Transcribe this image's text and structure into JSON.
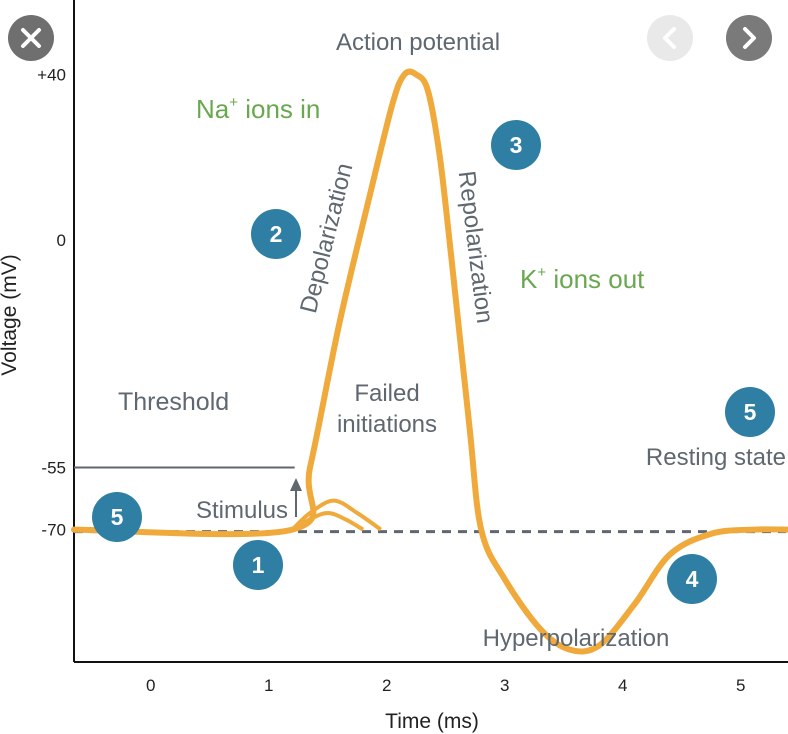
{
  "chart_data": {
    "type": "line",
    "xlabel": "Time (ms)",
    "ylabel": "Voltage (mV)",
    "x_ticks": [
      "0",
      "1",
      "2",
      "3",
      "4",
      "5"
    ],
    "y_ticks": [
      {
        "value": 40,
        "label": "+40"
      },
      {
        "value": 0,
        "label": "0"
      },
      {
        "value": -55,
        "label": "-55"
      },
      {
        "value": -70,
        "label": "-70"
      }
    ],
    "xlim": [
      -0.65,
      5.4
    ],
    "ylim": [
      -102,
      58
    ],
    "series": [
      {
        "points": [
          [
            -0.65,
            -70
          ],
          [
            1.2,
            -70
          ],
          [
            1.35,
            -55
          ],
          [
            1.6,
            -20
          ],
          [
            1.85,
            10
          ],
          [
            2.05,
            33
          ],
          [
            2.15,
            40
          ],
          [
            2.25,
            40
          ],
          [
            2.35,
            36
          ],
          [
            2.45,
            20
          ],
          [
            2.55,
            -5
          ],
          [
            2.7,
            -45
          ],
          [
            2.8,
            -70
          ],
          [
            3.0,
            -82
          ],
          [
            3.3,
            -94
          ],
          [
            3.55,
            -99
          ],
          [
            3.8,
            -98
          ],
          [
            4.1,
            -88
          ],
          [
            4.4,
            -76
          ],
          [
            4.75,
            -71
          ],
          [
            5.1,
            -70
          ],
          [
            5.4,
            -70
          ]
        ]
      }
    ],
    "failed_initiations": [
      [
        [
          1.2,
          -70
        ],
        [
          1.35,
          -66
        ],
        [
          1.55,
          -63
        ],
        [
          1.75,
          -66
        ],
        [
          1.95,
          -70
        ]
      ],
      [
        [
          1.2,
          -70
        ],
        [
          1.35,
          -67.5
        ],
        [
          1.5,
          -66
        ],
        [
          1.65,
          -67.5
        ],
        [
          1.8,
          -70
        ]
      ]
    ],
    "threshold": {
      "value": -55,
      "label": "Threshold"
    },
    "resting": {
      "value": -70,
      "label": "Resting state"
    },
    "annotations": {
      "peak": "Action potential",
      "na": {
        "base": "Na",
        "sup": "+",
        "rest": " ions in"
      },
      "k": {
        "base": "K",
        "sup": "+",
        "rest": " ions out"
      },
      "depol": "Depolarization",
      "repol": "Repolarization",
      "failed_1": "Failed",
      "failed_2": "initiations",
      "stimulus": "Stimulus",
      "hyper": "Hyperpolarization"
    },
    "badges": [
      "1",
      "2",
      "3",
      "4",
      "5",
      "5"
    ],
    "colors": {
      "curve": "#f0a93b",
      "badge": "#2e7fa3",
      "text": "#5f6770",
      "green": "#6aa84f",
      "dashed": "#5f6770"
    }
  },
  "overlay": {
    "close_icon": "close-icon",
    "prev_icon": "chevron-left-icon",
    "next_icon": "chevron-right-icon"
  }
}
